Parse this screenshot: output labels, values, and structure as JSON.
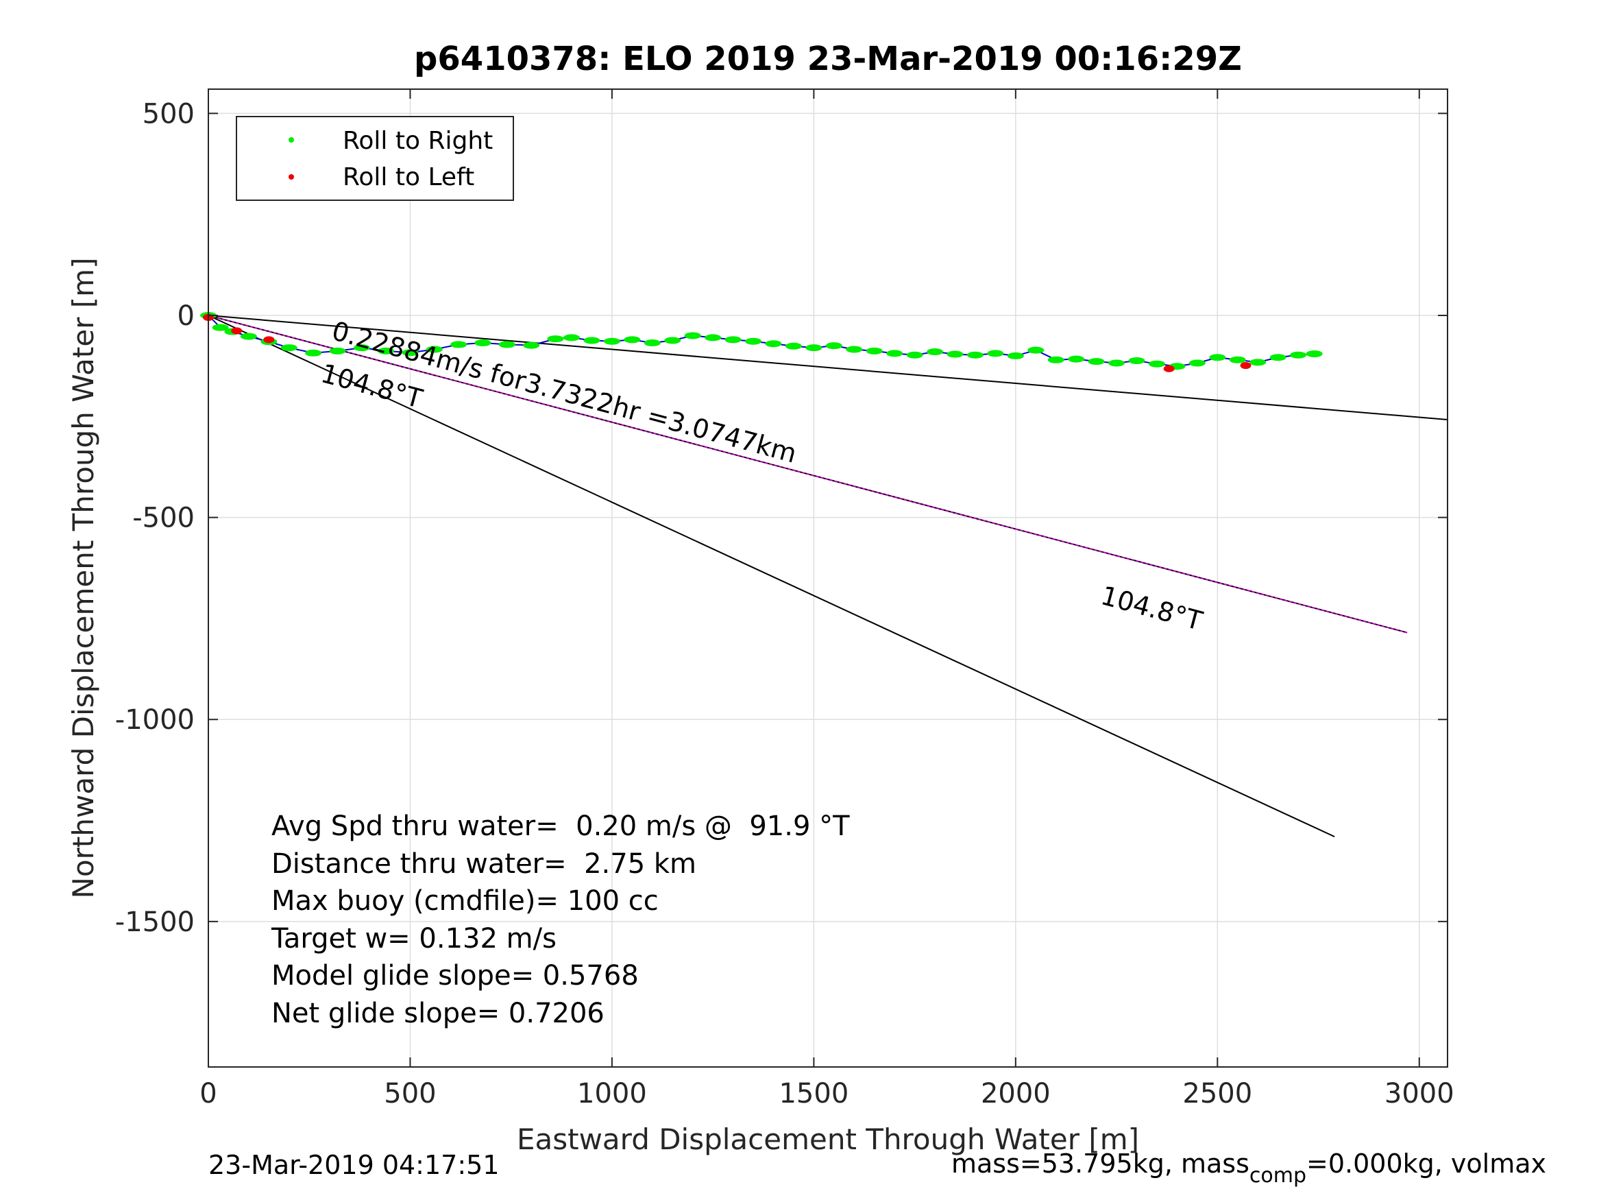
{
  "chart_data": {
    "type": "line",
    "title": "p6410378: ELO 2019 23-Mar-2019 00:16:29Z",
    "xlabel": "Eastward Displacement Through Water [m]",
    "ylabel": "Northward Displacement Through Water [m]",
    "xlim": [
      0,
      3070
    ],
    "ylim": [
      -1860,
      560
    ],
    "xticks": [
      0,
      500,
      1000,
      1500,
      2000,
      2500,
      3000
    ],
    "xtick_labels": [
      "0",
      "500",
      "1000",
      "1500",
      "2000",
      "2500",
      "3000"
    ],
    "yticks": [
      500,
      0,
      -500,
      -1000,
      -1500
    ],
    "ytick_labels": [
      "500",
      "0",
      "-500",
      "-1000",
      "-1500"
    ],
    "grid": true,
    "legend": {
      "placement": "top-left",
      "entries": [
        {
          "label": "Roll to Right",
          "color": "#00ee00"
        },
        {
          "label": "Roll to Left",
          "color": "#ee0000"
        }
      ]
    },
    "series": [
      {
        "name": "Roll to Right",
        "marker_color": "#00ee00",
        "path_color": "#0000cc",
        "x": [
          0,
          30,
          60,
          100,
          150,
          200,
          260,
          320,
          380,
          440,
          500,
          560,
          620,
          680,
          740,
          800,
          860,
          900,
          950,
          1000,
          1050,
          1100,
          1150,
          1200,
          1250,
          1300,
          1350,
          1400,
          1450,
          1500,
          1550,
          1600,
          1650,
          1700,
          1750,
          1800,
          1850,
          1900,
          1950,
          2000,
          2050,
          2100,
          2150,
          2200,
          2250,
          2300,
          2350,
          2400,
          2450,
          2500,
          2550,
          2600,
          2650,
          2700,
          2740
        ],
        "y": [
          0,
          -30,
          -40,
          -52,
          -65,
          -80,
          -93,
          -88,
          -80,
          -88,
          -92,
          -84,
          -72,
          -68,
          -72,
          -74,
          -58,
          -55,
          -62,
          -64,
          -60,
          -68,
          -62,
          -50,
          -55,
          -60,
          -64,
          -70,
          -76,
          -80,
          -75,
          -84,
          -88,
          -94,
          -98,
          -90,
          -96,
          -98,
          -94,
          -100,
          -86,
          -110,
          -108,
          -114,
          -118,
          -112,
          -120,
          -126,
          -118,
          -104,
          -110,
          -116,
          -104,
          -98,
          -95
        ]
      },
      {
        "name": "Roll to Left",
        "marker_color": "#ee0000",
        "x": [
          0,
          70,
          150,
          2380,
          2570
        ],
        "y": [
          -5,
          -38,
          -60,
          -132,
          -124
        ]
      }
    ],
    "reference_lines": [
      {
        "label": "104.8°T",
        "color": "#000000",
        "x": [
          0,
          3070
        ],
        "y": [
          0,
          -258
        ]
      },
      {
        "label": "104.8°T",
        "color": "#cc00cc",
        "x": [
          0,
          2970
        ],
        "y": [
          0,
          -785
        ]
      },
      {
        "label": "104.8°T",
        "color": "#000000",
        "x": [
          0,
          2790
        ],
        "y": [
          0,
          -1290
        ]
      }
    ],
    "annotations": {
      "current": "0.22884m/s for3.7322hr =3.0747km",
      "heading_label_1": "104.8°T",
      "heading_label_2": "104.8°T"
    },
    "stats": [
      "Avg Spd thru water=  0.20 m/s @  91.9 °T",
      "Distance thru water=  2.75 km",
      "Max buoy (cmdfile)= 100 cc",
      "Target w= 0.132 m/s",
      "Model glide slope= 0.5768",
      "Net glide slope= 0.7206"
    ],
    "footer_left": "23-Mar-2019 04:17:51",
    "footer_right": {
      "part1": "mass=53.795kg, mass",
      "subscript": "comp",
      "part2": "=0.000kg, volmax"
    }
  }
}
